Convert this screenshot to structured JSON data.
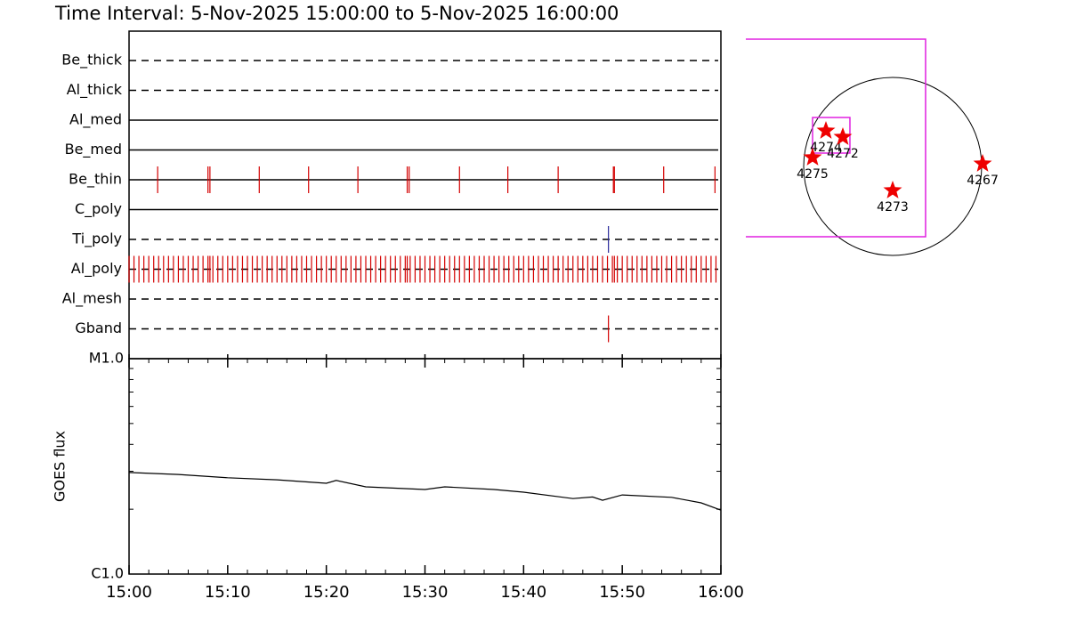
{
  "chart_data": [
    {
      "type": "timeline",
      "title": "Time Interval:  5-Nov-2025 15:00:00 to  5-Nov-2025 16:00:00",
      "xlim": [
        0,
        60
      ],
      "rows": [
        {
          "name": "Be_thick",
          "style": "dashed",
          "color": "#d40000",
          "events": []
        },
        {
          "name": "Al_thick",
          "style": "dashed",
          "color": "#d40000",
          "events": []
        },
        {
          "name": "Al_med",
          "style": "solid",
          "color": "#d40000",
          "events": []
        },
        {
          "name": "Be_med",
          "style": "solid",
          "color": "#d40000",
          "events": []
        },
        {
          "name": "Be_thin",
          "style": "solid",
          "color": "#d40000",
          "events": [
            2.9,
            8.0,
            8.2,
            13.2,
            18.2,
            23.2,
            28.2,
            28.4,
            33.5,
            38.4,
            43.5,
            49.1,
            49.2,
            54.2,
            59.4
          ]
        },
        {
          "name": "C_poly",
          "style": "solid",
          "color": "#d40000",
          "events": []
        },
        {
          "name": "Ti_poly",
          "style": "dashed",
          "color": "#2a2a9a",
          "events": [
            48.6
          ]
        },
        {
          "name": "Al_poly",
          "style": "dashed",
          "color": "#d40000",
          "events": [
            0,
            0.5,
            1,
            1.5,
            2,
            2.5,
            3,
            3.5,
            4,
            4.5,
            5,
            5.5,
            6,
            6.5,
            7,
            7.5,
            8,
            8.2,
            8.5,
            9,
            9.5,
            10,
            10.5,
            11,
            11.5,
            12,
            12.5,
            13,
            13.5,
            14,
            14.5,
            15,
            15.5,
            16,
            16.5,
            17,
            17.5,
            18,
            18.5,
            19,
            19.5,
            20,
            20.5,
            21,
            21.5,
            22,
            22.5,
            23,
            23.5,
            24,
            24.5,
            25,
            25.5,
            26,
            26.5,
            27,
            27.5,
            28,
            28.2,
            28.5,
            29,
            29.5,
            30,
            30.5,
            31,
            31.5,
            32,
            32.5,
            33,
            33.5,
            34,
            34.5,
            35,
            35.5,
            36,
            36.5,
            37,
            37.5,
            38,
            38.5,
            39,
            39.5,
            40,
            40.5,
            41,
            41.5,
            42,
            42.5,
            43,
            43.5,
            44,
            44.5,
            45,
            45.5,
            46,
            46.5,
            47,
            47.5,
            48,
            48.5,
            49,
            49.2,
            49.5,
            50,
            50.5,
            51,
            51.5,
            52,
            52.5,
            53,
            53.5,
            54,
            54.5,
            55,
            55.5,
            56,
            56.5,
            57,
            57.5,
            58,
            58.5,
            59,
            59.5
          ]
        },
        {
          "name": "Al_mesh",
          "style": "dashed",
          "color": "#d40000",
          "events": []
        },
        {
          "name": "Gband",
          "style": "dashed",
          "color": "#d40000",
          "events": [
            48.6
          ]
        }
      ]
    },
    {
      "type": "line",
      "ylabel": "GOES flux",
      "log_y": true,
      "color": "#000000",
      "x": [
        0,
        5,
        10,
        15,
        20,
        21,
        24,
        30,
        32,
        37,
        40,
        45,
        47,
        48,
        50,
        55,
        58,
        60
      ],
      "values": [
        2.96e-06,
        2.9e-06,
        2.8e-06,
        2.74e-06,
        2.64e-06,
        2.72e-06,
        2.54e-06,
        2.47e-06,
        2.54e-06,
        2.47e-06,
        2.4e-06,
        2.24e-06,
        2.28e-06,
        2.2e-06,
        2.33e-06,
        2.27e-06,
        2.14e-06,
        1.98e-06
      ],
      "xlim": [
        0,
        60
      ],
      "xticks": [
        {
          "value": 0,
          "label": "15:00"
        },
        {
          "value": 10,
          "label": "15:10"
        },
        {
          "value": 20,
          "label": "15:20"
        },
        {
          "value": 30,
          "label": "15:30"
        },
        {
          "value": 40,
          "label": "15:40"
        },
        {
          "value": 50,
          "label": "15:50"
        },
        {
          "value": 60,
          "label": "16:00"
        }
      ],
      "xminor": 2,
      "ylim": [
        1e-06,
        1e-05
      ],
      "yticks": [
        {
          "value": 1e-06,
          "label": "C1.0"
        },
        {
          "value": 1e-05,
          "label": "M1.0"
        }
      ]
    },
    {
      "type": "map",
      "radius": 960,
      "box_color": "#e020e0",
      "star_color": "#ee0000",
      "boxes": [
        [
          -1584,
          355,
          -758,
          1373
        ],
        [
          -864,
          -461,
          144,
          528
        ]
      ],
      "regions": [
        {
          "name": "4274",
          "x": -720,
          "y": 384
        },
        {
          "name": "4272",
          "x": -538,
          "y": 317
        },
        {
          "name": "4275",
          "x": -864,
          "y": 96
        },
        {
          "name": "4273",
          "x": 0,
          "y": -259
        },
        {
          "name": "4267",
          "x": 970,
          "y": 29
        }
      ]
    }
  ]
}
